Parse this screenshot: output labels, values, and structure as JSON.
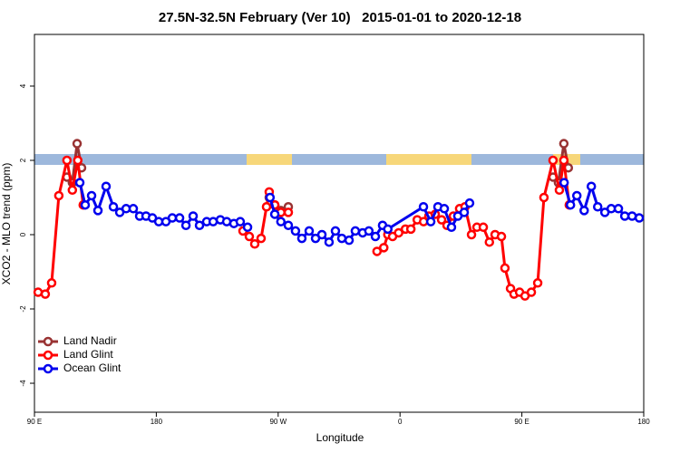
{
  "chart_data": {
    "type": "line",
    "title": "27.5N-32.5N February (Ver 10)   2015-01-01 to 2020-12-18",
    "x_label": "Longitude",
    "y_label": "XCO2 - MLO trend (ppm)",
    "xlim": [
      90,
      540
    ],
    "ylim": [
      -4.78,
      5.39
    ],
    "xticks": [
      {
        "value": 90,
        "label": "90 E"
      },
      180,
      {
        "value": 270,
        "label": "90 W"
      },
      {
        "value": 360,
        "label": "0"
      },
      {
        "value": 450,
        "label": "90 E"
      },
      {
        "value": 540,
        "label": "180"
      }
    ],
    "yticks": [
      -4,
      -2,
      0,
      2,
      4
    ],
    "legend": "bottom-left",
    "series": [
      {
        "name": "Land Nadir",
        "color": "#993333",
        "x": [
          114,
          118,
          121.5,
          124.8,
          null,
          263.4,
          267.5,
          272,
          277.5,
          null,
          473,
          477,
          481,
          484.3
        ],
        "values": [
          1.55,
          1.4,
          2.45,
          1.8,
          null,
          1.0,
          0.8,
          0.65,
          0.75,
          null,
          1.55,
          1.4,
          2.45,
          1.8
        ]
      },
      {
        "name": "Land Glint",
        "color": "#ff0000",
        "x": [
          92.7,
          98,
          102.7,
          108,
          114,
          118,
          122,
          126,
          null,
          244,
          248.7,
          252.7,
          257.4,
          261.4,
          263.4,
          267.5,
          272,
          277.5,
          null,
          343,
          348,
          351,
          354.5,
          359,
          364,
          368,
          372.7,
          377.4,
          381.3,
          386,
          390.7,
          394.7,
          399.4,
          404,
          408,
          412.8,
          416.8,
          421.5,
          426,
          430.2,
          434.9,
          437.5,
          441.6,
          444.2,
          448.3,
          452.3,
          457,
          461.7,
          466.3,
          473,
          477.7,
          481,
          485
        ],
        "values": [
          -1.55,
          -1.6,
          -1.3,
          1.05,
          2.0,
          1.2,
          2.0,
          0.8,
          null,
          0.1,
          -0.05,
          -0.25,
          -0.1,
          0.75,
          1.15,
          0.8,
          0.6,
          0.6,
          null,
          -0.45,
          -0.35,
          0,
          -0.05,
          0.05,
          0.15,
          0.15,
          0.4,
          0.35,
          0.5,
          0.55,
          0.4,
          0.25,
          0.5,
          0.7,
          0.75,
          0,
          0.2,
          0.2,
          -0.2,
          0,
          -0.05,
          -0.9,
          -1.45,
          -1.6,
          -1.55,
          -1.65,
          -1.55,
          -1.3,
          1.0,
          2.0,
          1.2,
          2.0,
          0.8
        ]
      },
      {
        "name": "Ocean Glint",
        "color": "#0000ee",
        "x": [
          123.5,
          127.5,
          132.2,
          136.9,
          142.9,
          148.3,
          153,
          157.7,
          163,
          167.7,
          172.4,
          177.1,
          181.8,
          187.1,
          191.8,
          197.2,
          201.9,
          207.2,
          211.9,
          217.2,
          222,
          227.3,
          232,
          237.3,
          242,
          247.4,
          null,
          264,
          267.5,
          272,
          277.5,
          282.8,
          287.5,
          292.9,
          297.6,
          302.3,
          307.6,
          312.3,
          317,
          322.4,
          327,
          332.4,
          337,
          341.8,
          347.1,
          351,
          377.3,
          382.7,
          388,
          392.7,
          398,
          402.7,
          407.4,
          411.4,
          null,
          481.2,
          485.9,
          490.6,
          496,
          501.3,
          506,
          511.3,
          516,
          521.3,
          526,
          531.4,
          536.7
        ],
        "values": [
          1.4,
          0.8,
          1.05,
          0.65,
          1.3,
          0.75,
          0.6,
          0.7,
          0.7,
          0.5,
          0.5,
          0.45,
          0.35,
          0.35,
          0.45,
          0.45,
          0.25,
          0.5,
          0.25,
          0.35,
          0.35,
          0.4,
          0.35,
          0.3,
          0.35,
          0.2,
          null,
          1.0,
          0.55,
          0.35,
          0.25,
          0.1,
          -0.1,
          0.1,
          -0.1,
          0,
          -0.2,
          0.1,
          -0.1,
          -0.15,
          0.1,
          0.05,
          0.1,
          -0.05,
          0.25,
          0.15,
          0.75,
          0.35,
          0.75,
          0.7,
          0.2,
          0.5,
          0.6,
          0.85,
          null,
          1.4,
          0.8,
          1.05,
          0.65,
          1.3,
          0.75,
          0.6,
          0.7,
          0.7,
          0.5,
          0.5,
          0.45
        ]
      }
    ]
  }
}
